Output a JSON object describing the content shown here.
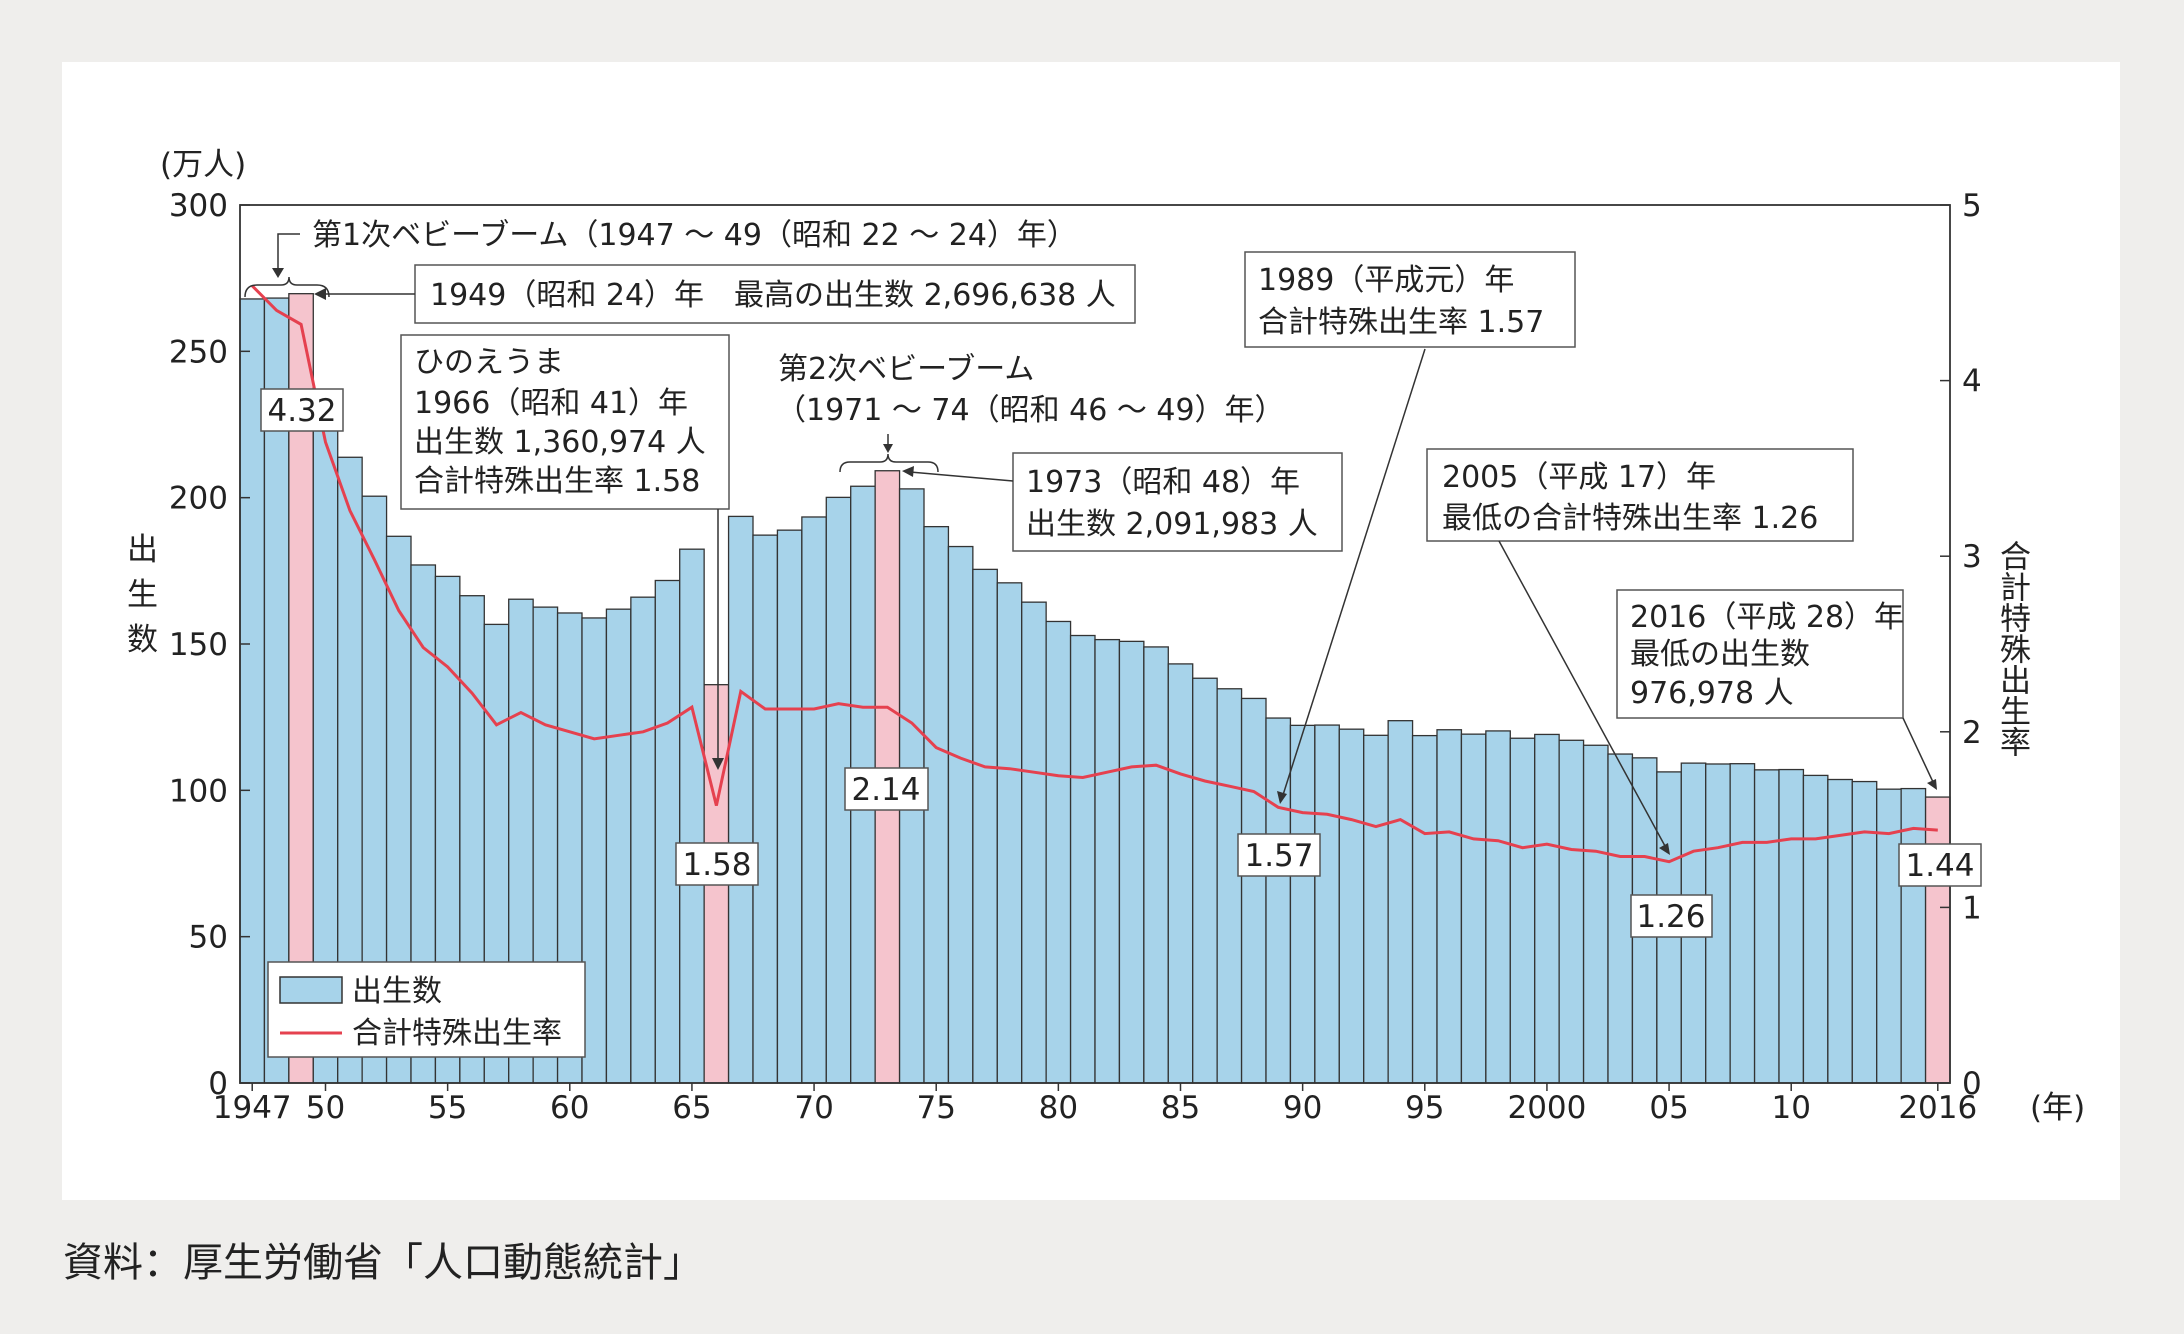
{
  "chart_data": {
    "type": "bar+line",
    "categories": [
      1947,
      1948,
      1949,
      1950,
      1951,
      1952,
      1953,
      1954,
      1955,
      1956,
      1957,
      1958,
      1959,
      1960,
      1961,
      1962,
      1963,
      1964,
      1965,
      1966,
      1967,
      1968,
      1969,
      1970,
      1971,
      1972,
      1973,
      1974,
      1975,
      1976,
      1977,
      1978,
      1979,
      1980,
      1981,
      1982,
      1983,
      1984,
      1985,
      1986,
      1987,
      1988,
      1989,
      1990,
      1991,
      1992,
      1993,
      1994,
      1995,
      1996,
      1997,
      1998,
      1999,
      2000,
      2001,
      2002,
      2003,
      2004,
      2005,
      2006,
      2007,
      2008,
      2009,
      2010,
      2011,
      2012,
      2013,
      2014,
      2015,
      2016
    ],
    "series": [
      {
        "name": "出生数",
        "type": "bar",
        "axis": "left",
        "values": [
          267.9,
          268.2,
          269.7,
          233.8,
          213.8,
          200.5,
          186.8,
          177.0,
          173.1,
          166.5,
          156.7,
          165.3,
          162.6,
          160.6,
          158.9,
          161.9,
          166.0,
          171.7,
          182.4,
          136.1,
          193.6,
          187.2,
          188.9,
          193.4,
          200.1,
          203.9,
          209.2,
          203.0,
          190.1,
          183.3,
          175.5,
          170.9,
          164.3,
          157.7,
          152.9,
          151.5,
          150.9,
          149.0,
          143.2,
          138.3,
          134.7,
          131.4,
          124.7,
          122.2,
          122.3,
          120.9,
          118.8,
          123.8,
          118.7,
          120.7,
          119.2,
          120.3,
          117.8,
          119.1,
          117.1,
          115.4,
          112.4,
          111.1,
          106.3,
          109.3,
          109.0,
          109.1,
          107.0,
          107.1,
          105.1,
          103.7,
          103.0,
          100.4,
          100.6,
          97.7
        ],
        "highlight_years": [
          1949,
          1966,
          1973,
          2016
        ]
      },
      {
        "name": "合計特殊出生率",
        "type": "line",
        "axis": "right",
        "values": [
          4.54,
          4.4,
          4.32,
          3.65,
          3.26,
          2.98,
          2.69,
          2.48,
          2.37,
          2.22,
          2.04,
          2.11,
          2.04,
          2.0,
          1.96,
          1.98,
          2.0,
          2.05,
          2.14,
          1.58,
          2.23,
          2.13,
          2.13,
          2.13,
          2.16,
          2.14,
          2.14,
          2.05,
          1.91,
          1.85,
          1.8,
          1.79,
          1.77,
          1.75,
          1.74,
          1.77,
          1.8,
          1.81,
          1.76,
          1.72,
          1.69,
          1.66,
          1.57,
          1.54,
          1.53,
          1.5,
          1.46,
          1.5,
          1.42,
          1.43,
          1.39,
          1.38,
          1.34,
          1.36,
          1.33,
          1.32,
          1.29,
          1.29,
          1.26,
          1.32,
          1.34,
          1.37,
          1.37,
          1.39,
          1.39,
          1.41,
          1.43,
          1.42,
          1.45,
          1.44
        ]
      }
    ],
    "ylim_left": [
      0,
      300
    ],
    "ylim_right": [
      0,
      5
    ],
    "left_ticks": [
      "0",
      "50",
      "100",
      "150",
      "200",
      "250",
      "300"
    ],
    "right_ticks": [
      "0",
      "1",
      "2",
      "3",
      "4",
      "5"
    ],
    "x_ticks": [
      {
        "year": 1947,
        "label": "1947"
      },
      {
        "year": 1950,
        "label": "50"
      },
      {
        "year": 1955,
        "label": "55"
      },
      {
        "year": 1960,
        "label": "60"
      },
      {
        "year": 1965,
        "label": "65"
      },
      {
        "year": 1970,
        "label": "70"
      },
      {
        "year": 1975,
        "label": "75"
      },
      {
        "year": 1980,
        "label": "80"
      },
      {
        "year": 1985,
        "label": "85"
      },
      {
        "year": 1990,
        "label": "90"
      },
      {
        "year": 1995,
        "label": "95"
      },
      {
        "year": 2000,
        "label": "2000"
      },
      {
        "year": 2005,
        "label": "05"
      },
      {
        "year": 2010,
        "label": "10"
      },
      {
        "year": 2016,
        "label": "2016"
      }
    ],
    "xunit": "(年)",
    "yunit_left": "(万人)",
    "ylabel_left": "出生数",
    "ylabel_right": "合計特殊出生率",
    "legend": {
      "placement": "bottom-left",
      "bar": "出生数",
      "line": "合計特殊出生率"
    },
    "value_labels": [
      "4.32",
      "1.58",
      "2.14",
      "1.57",
      "1.26",
      "1.44"
    ],
    "annotations": {
      "boom1": "第1次ベビーブーム（1947 ～ 49（昭和 22 ～ 24）年）",
      "max1949": "1949（昭和 24）年　最高の出生数 2,696,638 人",
      "hinoe": [
        "ひのえうま",
        "1966（昭和 41）年",
        "出生数 1,360,974 人",
        "合計特殊出生率 1.58"
      ],
      "boom2": [
        "第2次ベビーブーム",
        "（1971 ～ 74（昭和 46 ～ 49）年）"
      ],
      "y1973": [
        "1973（昭和 48）年",
        "出生数 2,091,983 人"
      ],
      "y1989": [
        "1989（平成元）年",
        "合計特殊出生率 1.57"
      ],
      "y2005": [
        "2005（平成 17）年",
        "最低の合計特殊出生率 1.26"
      ],
      "y2016": [
        "2016（平成 28）年",
        "最低の出生数",
        "976,978 人"
      ]
    },
    "colors": {
      "bar": "#a7d3ea",
      "highlight": "#f5c4cd",
      "line": "#e5414f"
    },
    "grid": false
  },
  "source": "資料：厚生労働省「人口動態統計」"
}
